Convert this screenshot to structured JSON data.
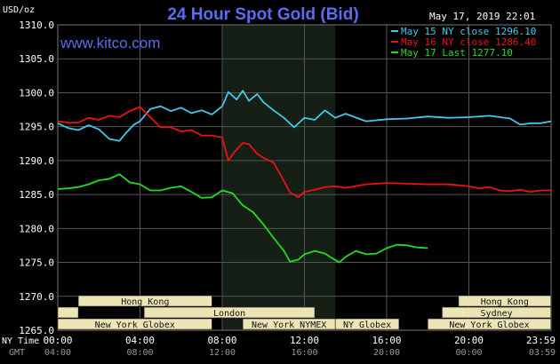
{
  "title": "24 Hour Spot Gold (Bid)",
  "website": "www.kitco.com",
  "timestamp": "May 17, 2019 22:01",
  "y_unit": "USD/oz",
  "row_labels": {
    "ny": "NY Time",
    "gmt": "GMT"
  },
  "colors": {
    "background": "#000000",
    "grid": "#555555",
    "highlight": "#151f15",
    "series": [
      "#44c8e8",
      "#ee1111",
      "#22dd22"
    ],
    "axis_text": "#ffffff",
    "gmt_text": "#999999",
    "title": "#5a6cf0",
    "session_fill": "#ede5b4"
  },
  "chart_data": {
    "type": "line",
    "title": "24 Hour Spot Gold (Bid)",
    "ylabel": "USD/oz",
    "xlim": [
      0,
      24
    ],
    "ylim": [
      1265,
      1310
    ],
    "yticks": [
      1265,
      1270,
      1275,
      1280,
      1285,
      1290,
      1295,
      1300,
      1305,
      1310
    ],
    "ytick_labels": [
      "1265.0",
      "1270.0",
      "1275.0",
      "1280.0",
      "1285.0",
      "1290.0",
      "1295.0",
      "1300.0",
      "1305.0",
      "1310.0"
    ],
    "xticks_ny": [
      "00:00",
      "04:00",
      "08:00",
      "12:00",
      "16:00",
      "20:00",
      "23:59"
    ],
    "xticks_gmt": [
      "04:00",
      "08:00",
      "12:00",
      "16:00",
      "20:00",
      "00:00",
      "03:59"
    ],
    "grid": true,
    "legend_position": "top-right",
    "highlight_range": [
      8,
      13.5
    ],
    "series": [
      {
        "name": "May 15 NY close 1296.10",
        "x": [
          0,
          0.5,
          1,
          1.5,
          2,
          2.5,
          3,
          3.3,
          3.7,
          4,
          4.5,
          5,
          5.5,
          6,
          6.5,
          7,
          7.5,
          8,
          8.3,
          8.7,
          9,
          9.3,
          9.7,
          10,
          10.5,
          11,
          11.5,
          12,
          12.5,
          13,
          13.5,
          14,
          15,
          16,
          17,
          18,
          19,
          20,
          21,
          22,
          22.5,
          23,
          23.5,
          23.99
        ],
        "y": [
          1295.5,
          1294.8,
          1294.5,
          1295.2,
          1294.6,
          1293.2,
          1292.9,
          1294.0,
          1295.3,
          1295.8,
          1297.6,
          1298.0,
          1297.3,
          1297.8,
          1297.0,
          1297.4,
          1296.8,
          1298.0,
          1300.1,
          1299.0,
          1300.3,
          1298.8,
          1299.8,
          1298.6,
          1297.4,
          1296.3,
          1294.9,
          1296.3,
          1296.0,
          1297.4,
          1296.3,
          1296.9,
          1295.8,
          1296.1,
          1296.2,
          1296.5,
          1296.3,
          1296.4,
          1296.6,
          1296.2,
          1295.3,
          1295.5,
          1295.5,
          1295.8
        ]
      },
      {
        "name": "May 16 NY close 1286.40",
        "x": [
          0,
          0.5,
          1,
          1.5,
          2,
          2.5,
          3,
          3.5,
          4,
          4.5,
          5,
          5.5,
          6,
          6.5,
          7,
          7.5,
          8,
          8.3,
          8.6,
          9,
          9.3,
          9.7,
          10,
          10.5,
          11,
          11.3,
          11.7,
          12,
          12.5,
          13,
          13.5,
          14,
          15,
          16,
          17,
          18,
          19,
          20,
          20.5,
          21,
          21.5,
          22,
          22.5,
          23,
          23.5,
          23.99
        ],
        "y": [
          1295.8,
          1295.6,
          1295.6,
          1296.3,
          1296.0,
          1296.6,
          1296.4,
          1297.3,
          1297.9,
          1296.4,
          1294.9,
          1294.9,
          1294.3,
          1294.5,
          1293.7,
          1293.7,
          1293.4,
          1290.0,
          1291.3,
          1292.6,
          1292.4,
          1291.0,
          1290.4,
          1289.7,
          1287.0,
          1285.3,
          1284.6,
          1285.4,
          1285.7,
          1286.1,
          1286.2,
          1286.0,
          1286.5,
          1286.7,
          1286.6,
          1286.5,
          1286.5,
          1286.2,
          1285.9,
          1286.1,
          1285.6,
          1285.5,
          1285.7,
          1285.4,
          1285.6,
          1285.6
        ]
      },
      {
        "name": "May 17 Last 1277.10",
        "x": [
          0,
          0.5,
          1,
          1.5,
          2,
          2.5,
          3,
          3.5,
          4,
          4.5,
          5,
          5.5,
          6,
          6.5,
          7,
          7.5,
          8,
          8.5,
          9,
          9.5,
          10,
          10.5,
          11,
          11.3,
          11.7,
          12,
          12.5,
          13,
          13.3,
          13.7,
          14,
          14.5,
          15,
          15.5,
          16,
          16.5,
          17,
          17.5,
          18
        ],
        "y": [
          1285.8,
          1285.9,
          1286.1,
          1286.5,
          1287.1,
          1287.3,
          1288.0,
          1286.8,
          1286.5,
          1285.6,
          1285.6,
          1286.0,
          1286.2,
          1285.4,
          1284.5,
          1284.6,
          1285.6,
          1285.2,
          1283.4,
          1282.4,
          1280.6,
          1278.6,
          1276.7,
          1275.1,
          1275.4,
          1276.2,
          1276.7,
          1276.3,
          1275.7,
          1275.0,
          1275.8,
          1276.7,
          1276.2,
          1276.3,
          1277.1,
          1277.6,
          1277.5,
          1277.2,
          1277.1
        ]
      }
    ]
  },
  "sessions": [
    {
      "label": "Hong Kong",
      "start": 1.0,
      "end": 7.5,
      "row": 0
    },
    {
      "label": "",
      "start": 0,
      "end": 1.0,
      "row": 1
    },
    {
      "label": "London",
      "start": 4.2,
      "end": 12.5,
      "row": 1
    },
    {
      "label": "New York Globex",
      "start": 0,
      "end": 7.5,
      "row": 2
    },
    {
      "label": "New York NYMEX",
      "start": 9.0,
      "end": 13.5,
      "row": 2
    },
    {
      "label": "NY Globex",
      "start": 13.5,
      "end": 16.6,
      "row": 2
    },
    {
      "label": "Hong Kong",
      "start": 19.5,
      "end": 23.99,
      "row": 0
    },
    {
      "label": "Sydney",
      "start": 18.7,
      "end": 23.99,
      "row": 1
    },
    {
      "label": "New York Globex",
      "start": 18.0,
      "end": 23.99,
      "row": 2
    }
  ]
}
